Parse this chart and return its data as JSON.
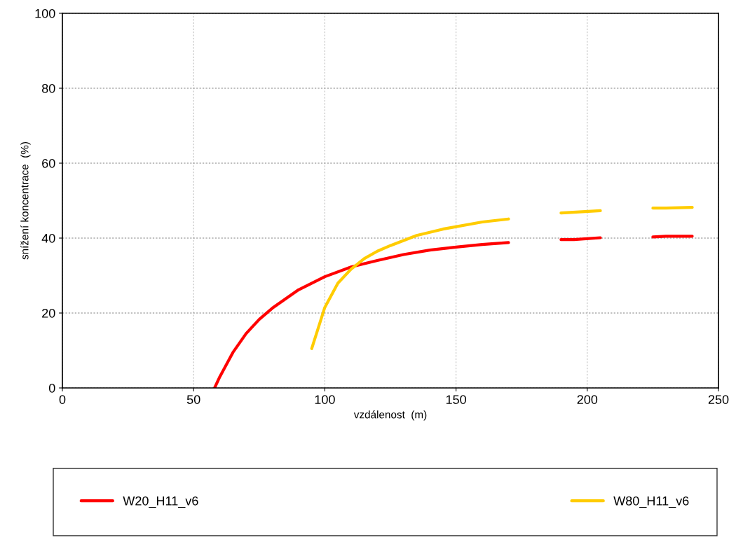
{
  "chart_data": {
    "type": "line",
    "xlabel": "vzdálenost  (m)",
    "ylabel": "snížení koncentrace  (%)",
    "xlim": [
      0,
      250
    ],
    "xticks": [
      0,
      50,
      100,
      150,
      200,
      250
    ],
    "ylim": [
      0,
      100
    ],
    "yticks": [
      0,
      20,
      40,
      60,
      80,
      100
    ],
    "grid": true,
    "legend": "bottom",
    "marker": "none",
    "line_style": "solid",
    "series": [
      {
        "name": "W20_H11_v6",
        "color": "#ff0000",
        "x": [
          58,
          60,
          65,
          70,
          75,
          80,
          90,
          100,
          110,
          120,
          130,
          140,
          150,
          160,
          170,
          180,
          190,
          195,
          205,
          215,
          225,
          230,
          240
        ],
        "values": [
          0,
          3,
          9.5,
          14.5,
          18.3,
          21.3,
          26.2,
          29.7,
          32.3,
          34.0,
          35.6,
          36.8,
          37.6,
          38.3,
          38.8,
          null,
          39.6,
          39.6,
          40.1,
          null,
          40.3,
          40.5,
          40.5
        ]
      },
      {
        "name": "W80_H11_v6",
        "color": "#ffcc00",
        "x": [
          95,
          100,
          105,
          110,
          115,
          120,
          125,
          135,
          145,
          160,
          170,
          180,
          190,
          205,
          215,
          225,
          230,
          240
        ],
        "values": [
          10.5,
          21.5,
          28,
          31.7,
          34.5,
          36.5,
          38,
          40.7,
          42.4,
          44.3,
          45.1,
          null,
          46.7,
          47.3,
          null,
          48,
          48,
          48.2
        ]
      }
    ]
  }
}
